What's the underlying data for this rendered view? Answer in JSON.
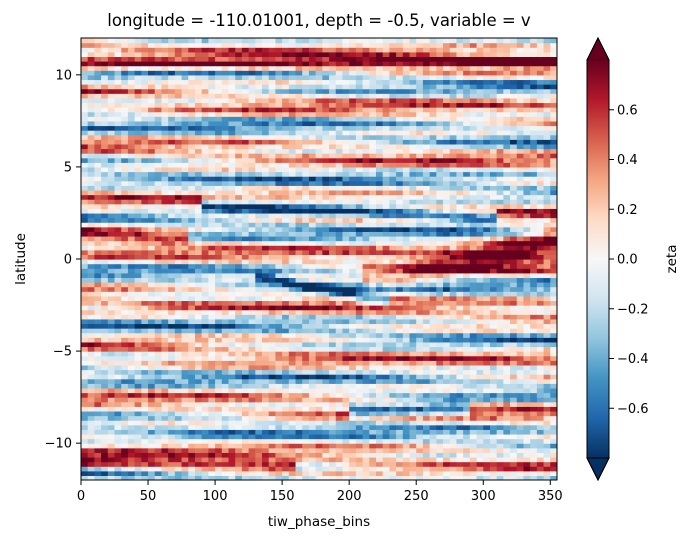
{
  "chart_data": {
    "type": "heatmap",
    "title": "longitude = -110.01001, depth = -0.5, variable = v",
    "xlabel": "tiw_phase_bins",
    "ylabel": "latitude",
    "xlim": [
      0,
      355
    ],
    "ylim": [
      -12,
      12
    ],
    "x_ticks": [
      0,
      50,
      100,
      150,
      200,
      250,
      300,
      350
    ],
    "x_tick_labels": [
      "0",
      "50",
      "100",
      "150",
      "200",
      "250",
      "300",
      "350"
    ],
    "y_ticks": [
      -10,
      -5,
      0,
      5,
      10
    ],
    "y_tick_labels": [
      "−10",
      "−5",
      "0",
      "5",
      "10"
    ],
    "colorbar": {
      "label": "zeta",
      "colormap": "RdBu_r",
      "vmin": -0.8,
      "vmax": 0.8,
      "extend": "both",
      "ticks": [
        -0.6,
        -0.4,
        -0.2,
        0.0,
        0.2,
        0.4,
        0.6
      ],
      "tick_labels": [
        "−0.6",
        "−0.4",
        "−0.2",
        "0.0",
        "0.2",
        "0.4",
        "0.6"
      ]
    },
    "features": [
      {
        "kind": "positive_band",
        "lat_start": 1.5,
        "lat_end": 1.2,
        "x_start": 0,
        "x_end": 70
      },
      {
        "kind": "negative_band",
        "lat_start": 3.0,
        "lat_end": 2.3,
        "x_start": 100,
        "x_end": 300
      },
      {
        "kind": "positive_wedge",
        "lat_start": -1.0,
        "lat_end": 1.0,
        "x_start": 220,
        "x_end": 355
      },
      {
        "kind": "negative_streak",
        "lat_start": -1.0,
        "lat_end": -2.2,
        "x_start": 140,
        "x_end": 220
      },
      {
        "kind": "positive_band",
        "lat_start": 10.5,
        "lat_end": 10.8,
        "x_start": 0,
        "x_end": 355
      },
      {
        "kind": "positive_band",
        "lat_start": -11.0,
        "lat_end": -11.2,
        "x_start": 0,
        "x_end": 150
      },
      {
        "kind": "negative_band",
        "lat_start": -8.3,
        "lat_end": -8.1,
        "x_start": 210,
        "x_end": 280
      }
    ]
  }
}
